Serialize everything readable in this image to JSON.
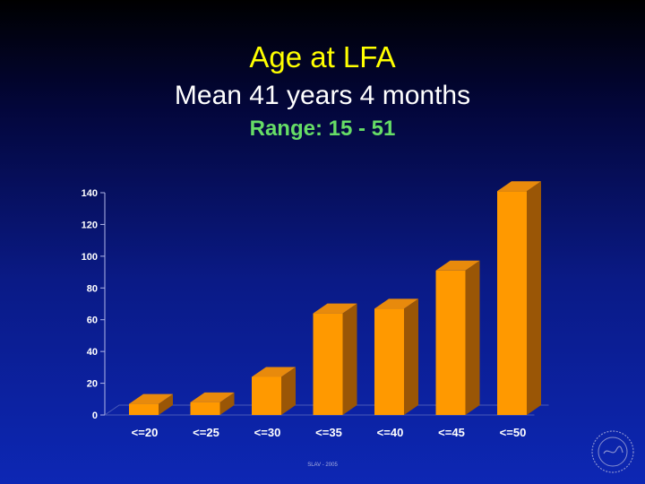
{
  "slide": {
    "title": "Age at LFA",
    "subtitle": "Mean 41 years 4 months",
    "range": "Range: 15 - 51",
    "footer": "SLAV - 2005"
  },
  "colors": {
    "title": "#ffff00",
    "range": "#66dd66",
    "bar_front": "#ff9900",
    "bar_top": "#e88a0c",
    "bar_side": "#9a5606"
  },
  "chart_data": {
    "type": "bar",
    "categories": [
      "<=20",
      "<=25",
      "<=30",
      "<=35",
      "<=40",
      "<=45",
      "<=50"
    ],
    "values": [
      7,
      8,
      24,
      64,
      67,
      91,
      141
    ],
    "ylim": [
      0,
      140
    ],
    "yticks": [
      0,
      20,
      40,
      60,
      80,
      100,
      120,
      140
    ],
    "grid": false,
    "style": "3d"
  }
}
